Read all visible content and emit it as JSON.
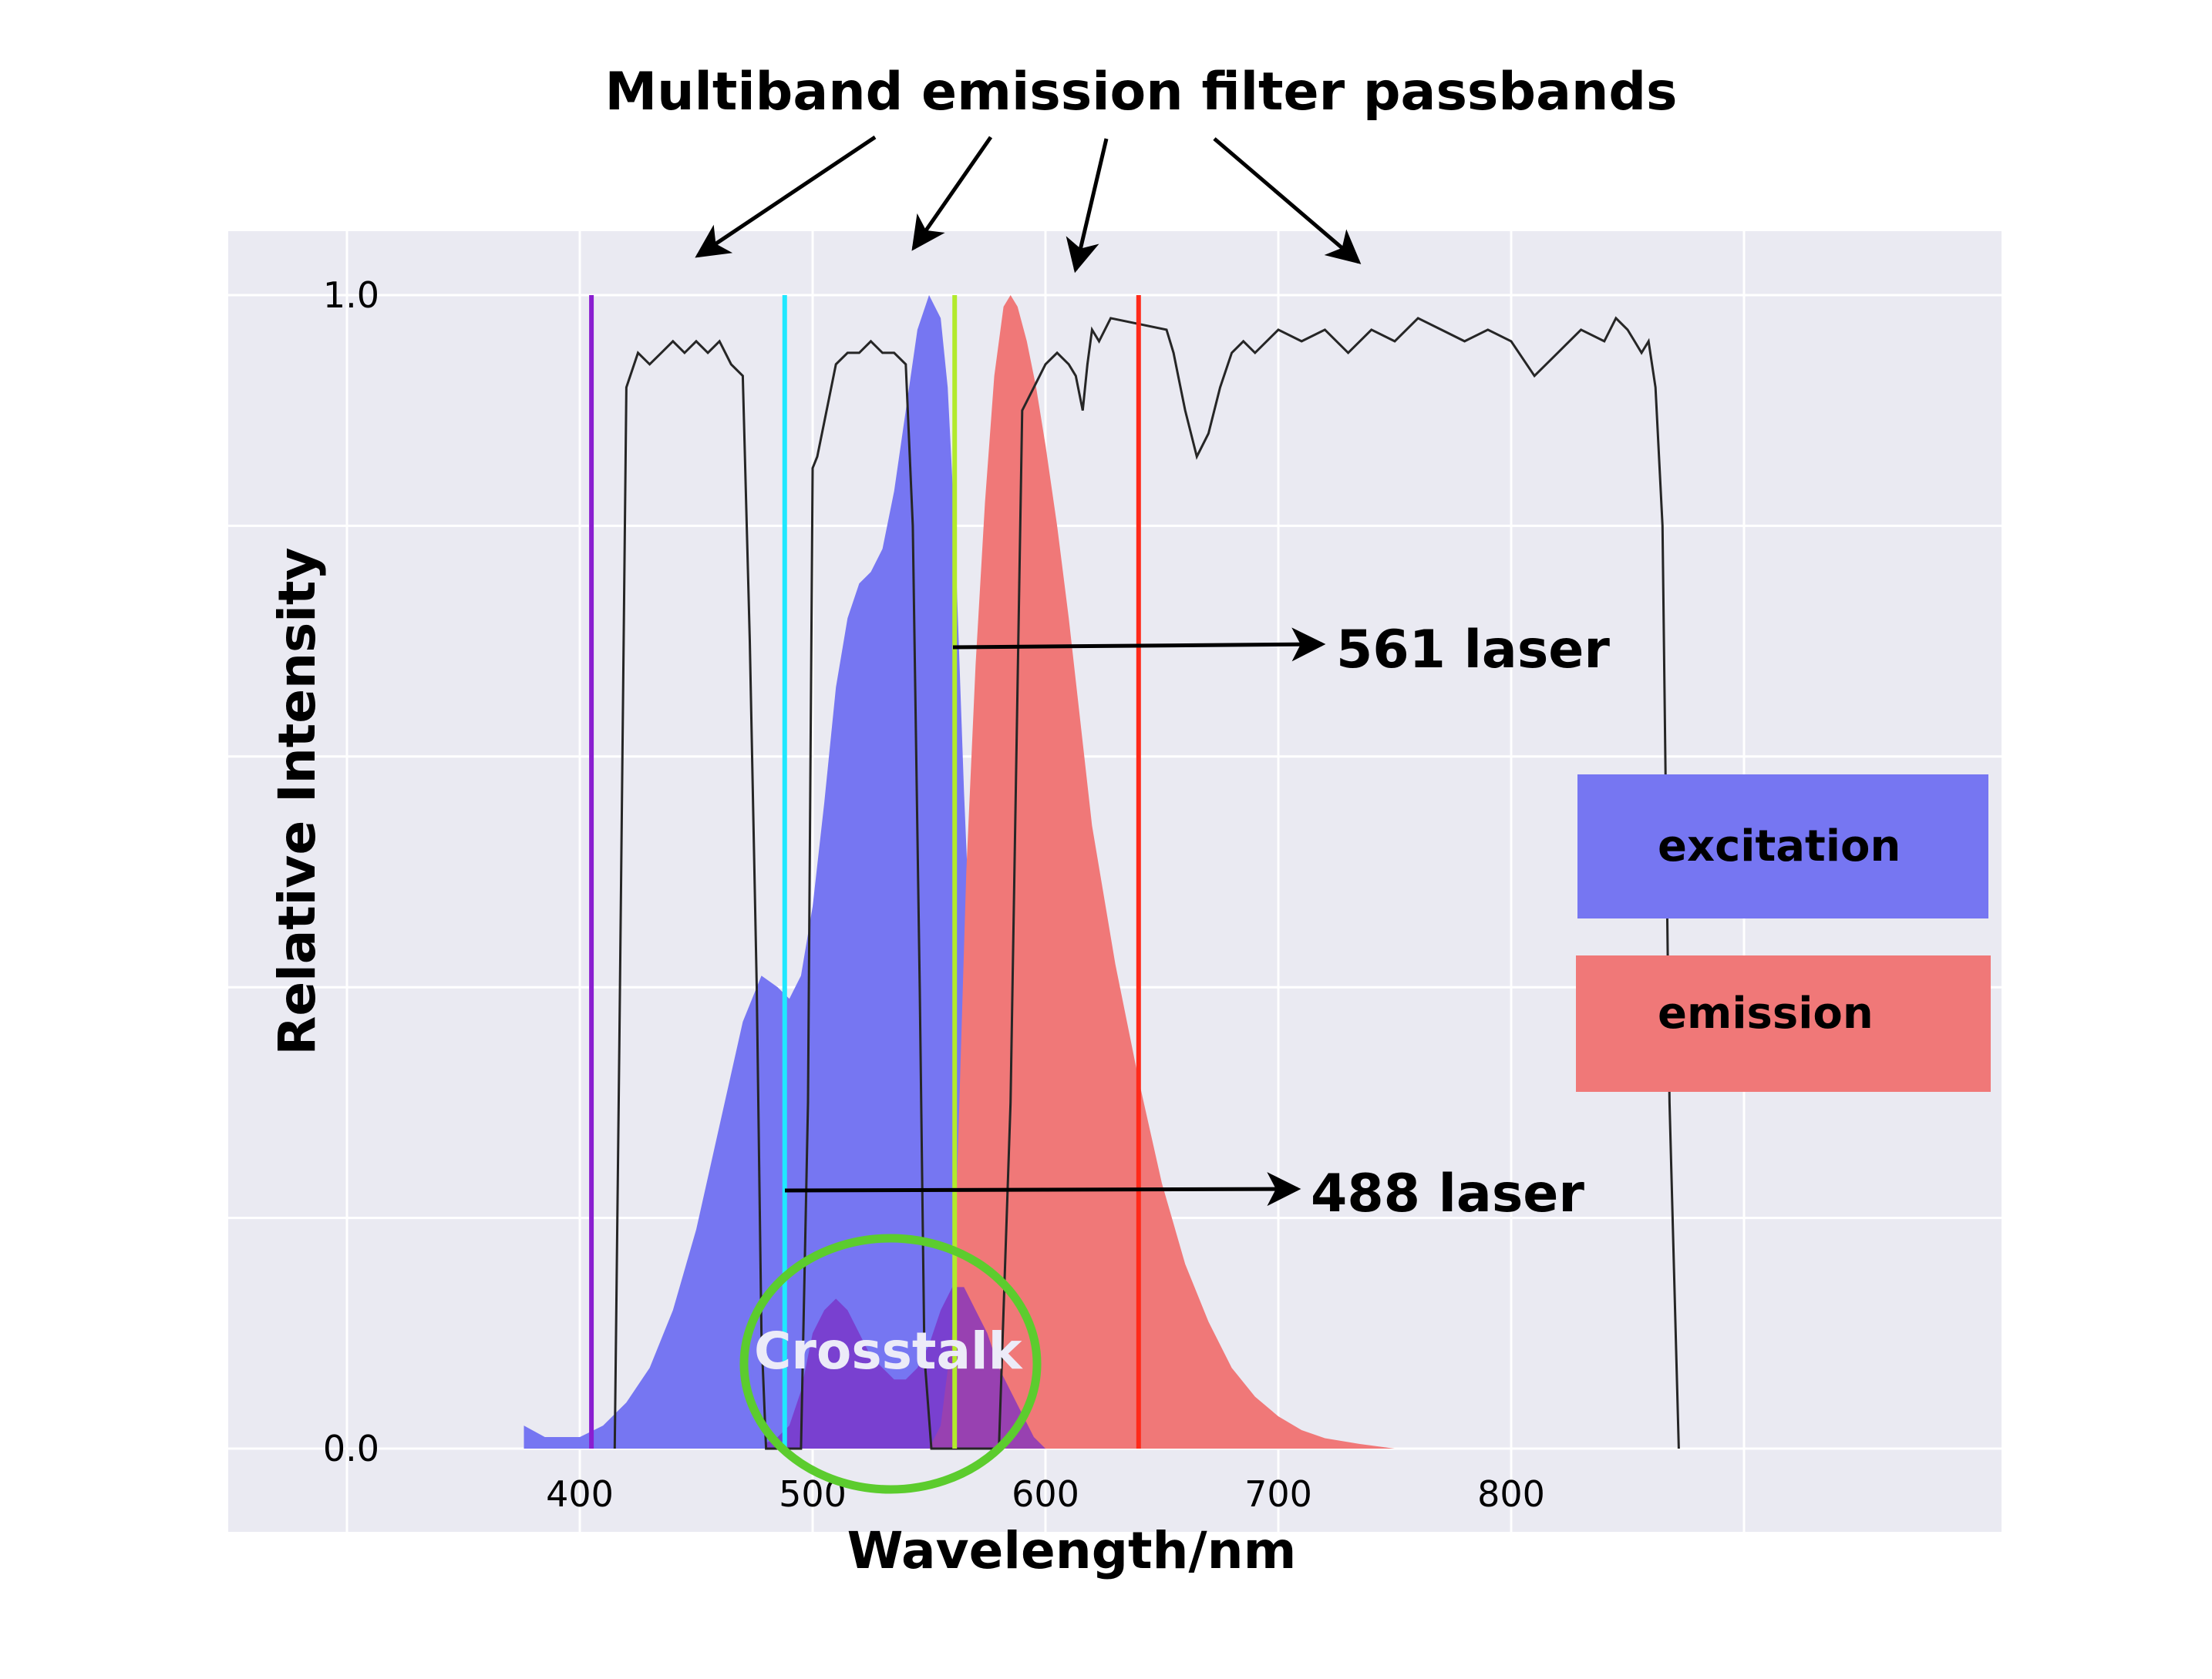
{
  "chart_data": {
    "type": "area",
    "title": "Multiband emission filter passbands",
    "xlabel": "Wavelength/nm",
    "ylabel": "Relative Intensity",
    "xlim": [
      300,
      1000
    ],
    "ylim": [
      0.0,
      1.0
    ],
    "x_ticks": [
      400,
      500,
      600,
      700,
      800
    ],
    "y_tick_labels": [
      "1.0",
      "0.0"
    ],
    "grid": true,
    "legend_placement": "right",
    "colors": {
      "background": "#eaeaf2",
      "grid": "#ffffff",
      "excitation": "#7676f2",
      "emission": "#f07878",
      "overlap": "#7b2fc4",
      "filter": "#262626",
      "crosstalk_ring": "#5ccc2e",
      "laser_405": "#8a1ed0",
      "laser_488": "#20e8ff",
      "laser_561": "#b2ea2c",
      "laser_640": "#ff2a1a",
      "arrows": "#000000"
    },
    "series": [
      {
        "name": "excitation",
        "color": "#7676f2",
        "x": [
          376,
          385,
          400,
          410,
          420,
          430,
          440,
          450,
          460,
          470,
          478,
          485,
          490,
          495,
          500,
          505,
          510,
          515,
          520,
          525,
          530,
          535,
          540,
          545,
          550,
          555,
          558,
          561,
          565,
          570,
          575,
          580,
          585,
          590,
          595,
          600
        ],
        "values": [
          0.02,
          0.01,
          0.01,
          0.02,
          0.04,
          0.07,
          0.12,
          0.19,
          0.28,
          0.37,
          0.41,
          0.4,
          0.39,
          0.41,
          0.47,
          0.56,
          0.66,
          0.72,
          0.75,
          0.76,
          0.78,
          0.83,
          0.9,
          0.97,
          1.0,
          0.98,
          0.92,
          0.8,
          0.57,
          0.33,
          0.17,
          0.09,
          0.05,
          0.03,
          0.01,
          0.0
        ]
      },
      {
        "name": "emission",
        "color": "#f07878",
        "x": [
          550,
          555,
          560,
          563,
          566,
          570,
          574,
          578,
          582,
          585,
          588,
          592,
          596,
          600,
          605,
          610,
          615,
          620,
          630,
          640,
          650,
          660,
          670,
          680,
          690,
          700,
          710,
          720,
          735,
          750
        ],
        "values": [
          0.0,
          0.02,
          0.1,
          0.3,
          0.5,
          0.68,
          0.82,
          0.93,
          0.99,
          1.0,
          0.99,
          0.96,
          0.92,
          0.87,
          0.8,
          0.72,
          0.63,
          0.54,
          0.42,
          0.32,
          0.23,
          0.16,
          0.11,
          0.07,
          0.045,
          0.028,
          0.016,
          0.009,
          0.004,
          0.0
        ]
      }
    ],
    "filter_transmission": {
      "x": [
        415,
        417,
        420,
        425,
        430,
        435,
        440,
        445,
        450,
        455,
        460,
        465,
        470,
        473,
        476,
        478,
        480,
        482,
        485,
        495,
        498,
        500,
        502,
        505,
        510,
        515,
        520,
        525,
        530,
        535,
        540,
        543,
        546,
        548,
        551,
        553,
        555,
        557,
        560,
        563,
        566,
        570,
        575,
        580,
        585,
        590,
        595,
        600,
        605,
        610,
        613,
        616,
        618,
        620,
        623,
        628,
        652,
        655,
        657,
        660,
        665,
        670,
        675,
        680,
        685,
        690,
        700,
        710,
        720,
        730,
        740,
        750,
        760,
        770,
        780,
        790,
        800,
        810,
        820,
        830,
        840,
        845,
        850,
        853,
        856,
        859,
        862,
        865,
        868,
        872
      ],
      "values": [
        0.0,
        0.35,
        0.92,
        0.95,
        0.94,
        0.95,
        0.96,
        0.95,
        0.96,
        0.95,
        0.96,
        0.94,
        0.93,
        0.7,
        0.4,
        0.1,
        0.0,
        0.0,
        0.0,
        0.0,
        0.3,
        0.85,
        0.86,
        0.89,
        0.94,
        0.95,
        0.95,
        0.96,
        0.95,
        0.95,
        0.94,
        0.8,
        0.4,
        0.08,
        0.0,
        0.0,
        0.0,
        0.0,
        0.0,
        0.0,
        0.0,
        0.0,
        0.0,
        0.0,
        0.3,
        0.9,
        0.92,
        0.94,
        0.95,
        0.94,
        0.93,
        0.9,
        0.94,
        0.97,
        0.96,
        0.98,
        0.97,
        0.95,
        0.93,
        0.9,
        0.86,
        0.88,
        0.92,
        0.95,
        0.96,
        0.95,
        0.97,
        0.96,
        0.97,
        0.95,
        0.97,
        0.96,
        0.98,
        0.97,
        0.96,
        0.97,
        0.96,
        0.93,
        0.95,
        0.97,
        0.96,
        0.98,
        0.97,
        0.96,
        0.95,
        0.96,
        0.92,
        0.8,
        0.3,
        0.0
      ]
    },
    "overlap_region": {
      "x": [
        480,
        485,
        490,
        495,
        500,
        505,
        510,
        515,
        520,
        525,
        530,
        535,
        540,
        545,
        550,
        555,
        560,
        565,
        570,
        575,
        580,
        585,
        590,
        595,
        600
      ],
      "values": [
        0.005,
        0.01,
        0.02,
        0.05,
        0.1,
        0.12,
        0.13,
        0.12,
        0.1,
        0.08,
        0.07,
        0.06,
        0.06,
        0.07,
        0.09,
        0.12,
        0.14,
        0.14,
        0.12,
        0.1,
        0.07,
        0.05,
        0.03,
        0.01,
        0.0
      ]
    },
    "laser_lines": [
      {
        "x": 405,
        "color": "#8a1ed0"
      },
      {
        "x": 488,
        "color": "#20e8ff"
      },
      {
        "x": 561,
        "color": "#b2ea2c"
      },
      {
        "x": 640,
        "color": "#ff2a1a"
      }
    ],
    "annotations": {
      "laser_561": "561 laser",
      "laser_488": "488 laser",
      "crosstalk": "Crosstalk"
    },
    "legend": [
      {
        "label": "excitation",
        "color": "#7676f2"
      },
      {
        "label": "emission",
        "color": "#f07878"
      }
    ]
  }
}
